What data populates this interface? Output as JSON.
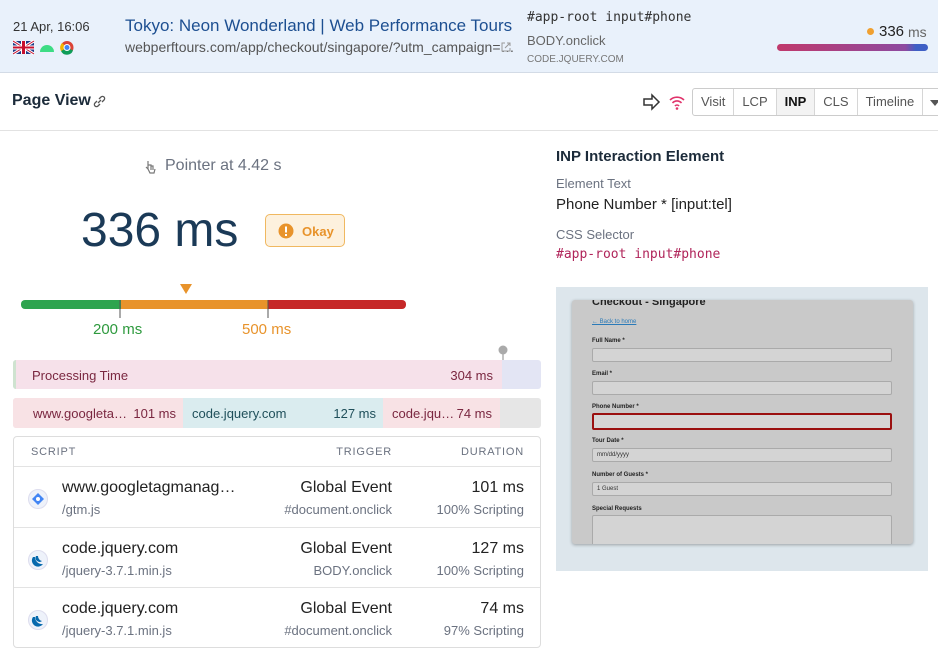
{
  "header": {
    "date": "21 Apr, 16:06",
    "page_title": "Tokyo: Neon Wonderland | Web Performance Tours",
    "url": "webperftours.com/app/checkout/singapore/?utm_campaign=…",
    "selector": "#app-root input#phone",
    "event": "BODY.onclick",
    "source": "CODE.JQUERY.COM",
    "inp_value": "336",
    "inp_unit": "ms"
  },
  "toolbar": {
    "title": "Page View",
    "tabs": [
      "Visit",
      "LCP",
      "INP",
      "CLS",
      "Timeline"
    ]
  },
  "summary": {
    "trigger": "Pointer at 4.42 s",
    "value": "336 ms",
    "rating": "Okay",
    "thresholds": [
      "200 ms",
      "500 ms"
    ]
  },
  "breakdown": {
    "label": "Processing Time",
    "value": "304 ms",
    "scripts": [
      {
        "name": "www.googleta…",
        "value": "101 ms"
      },
      {
        "name": "code.jquery.com",
        "value": "127 ms"
      },
      {
        "name": "code.jqu…",
        "value": "74 ms"
      }
    ]
  },
  "table": {
    "columns": [
      "SCRIPT",
      "TRIGGER",
      "DURATION"
    ],
    "rows": [
      {
        "script": "www.googletagmanag…",
        "file": "/gtm.js",
        "trigger": "Global Event",
        "trigger_detail": "#document.onclick",
        "duration": "101 ms",
        "detail": "100% Scripting"
      },
      {
        "script": "code.jquery.com",
        "file": "/jquery-3.7.1.min.js",
        "trigger": "Global Event",
        "trigger_detail": "BODY.onclick",
        "duration": "127 ms",
        "detail": "100% Scripting"
      },
      {
        "script": "code.jquery.com",
        "file": "/jquery-3.7.1.min.js",
        "trigger": "Global Event",
        "trigger_detail": "#document.onclick",
        "duration": "74 ms",
        "detail": "97% Scripting"
      }
    ]
  },
  "element": {
    "title": "INP Interaction Element",
    "text_label": "Element Text",
    "text": "Phone Number * [input:tel]",
    "selector_label": "CSS Selector",
    "selector": "#app-root input#phone"
  },
  "screenshot": {
    "heading": "Checkout - Singapore",
    "back_link": "← Back to home",
    "fields": [
      "Full Name *",
      "Email *",
      "Phone Number *",
      "Tour Date *",
      "Number of Guests *",
      "Special Requests"
    ],
    "date_placeholder": "mm/dd/yyyy",
    "guests": "1 Guest"
  }
}
